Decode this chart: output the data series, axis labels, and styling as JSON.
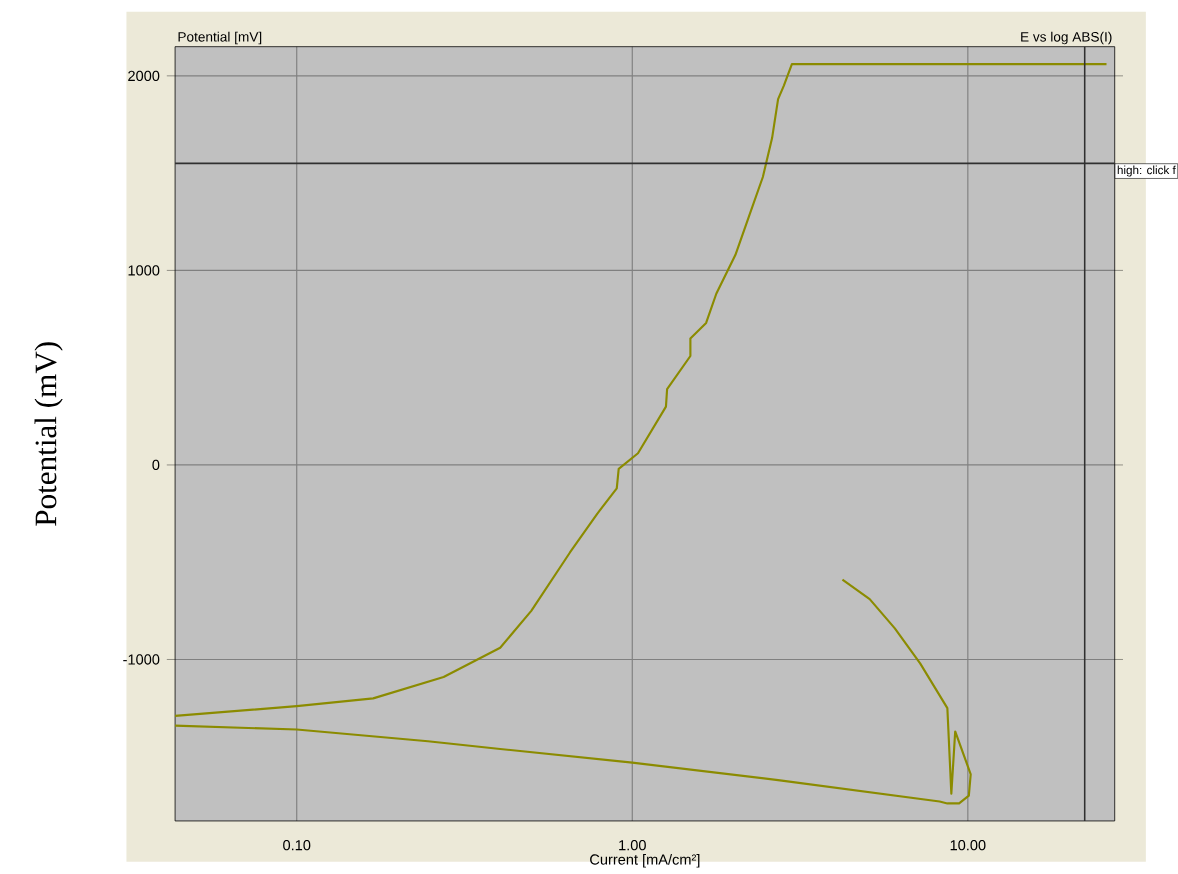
{
  "chart_data": {
    "type": "line",
    "ylabel": "Potential (mV)",
    "xlabel": "Current [mA/cm²]",
    "annotations": [
      "Potential [mV]",
      "E vs log ABS(I)"
    ],
    "log": "x",
    "grid": true,
    "xlim": [
      0.0434,
      27.4
    ],
    "ylim": [
      -1830,
      2150
    ],
    "xticks": [
      {
        "value": 0.1,
        "label": "0.10"
      },
      {
        "value": 1,
        "label": "1.00"
      },
      {
        "value": 10,
        "label": "10.00"
      }
    ],
    "yticks": [
      -1000,
      0,
      1000,
      2000
    ],
    "ref_lines": [
      {
        "axis": "y",
        "value": 1550,
        "label": "high: click f",
        "color": "#303030"
      },
      {
        "axis": "x",
        "value": 22.3,
        "label": null,
        "color": "#303030"
      }
    ],
    "series": [
      {
        "color": "#8b8b00",
        "x": [
          4.23,
          5.1,
          6.06,
          7.21,
          8.69,
          8.93,
          9.17,
          10.2,
          10.07,
          9.42,
          8.69,
          8.24,
          2.72,
          1.0,
          0.404,
          0.246,
          0.1,
          0.0434
        ],
        "values": [
          -590,
          -690,
          -840,
          -1020,
          -1250,
          -1690,
          -1370,
          -1590,
          -1700,
          -1740,
          -1740,
          -1730,
          -1620,
          -1530,
          -1460,
          -1420,
          -1360,
          -1340
        ]
      },
      {
        "color": "#8b8b00",
        "x": [
          0.0434,
          0.1,
          0.169,
          0.274,
          0.404,
          0.5,
          0.652,
          0.787,
          0.899,
          0.911,
          1.04,
          1.26,
          1.27,
          1.49,
          1.49,
          1.66,
          1.78,
          2.03,
          2.23,
          2.45,
          2.61,
          2.72,
          2.83,
          2.99,
          25.9
        ],
        "values": [
          -1290,
          -1240,
          -1200,
          -1090,
          -940,
          -750,
          -450,
          -250,
          -120,
          -20,
          60,
          300,
          390,
          560,
          650,
          730,
          880,
          1080,
          1280,
          1480,
          1680,
          1880,
          1950,
          2060,
          2060
        ]
      }
    ]
  }
}
